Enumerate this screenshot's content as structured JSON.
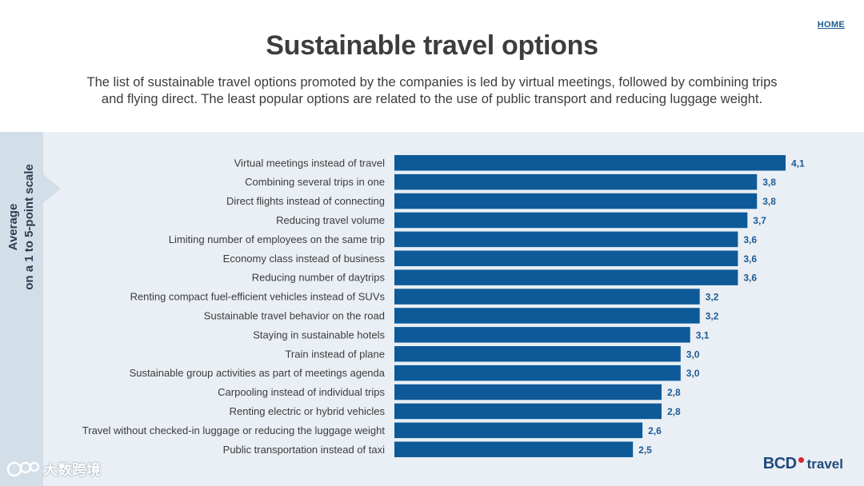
{
  "nav": {
    "home_label": "HOME"
  },
  "header": {
    "title": "Sustainable travel options",
    "subtitle_line1": "The list of sustainable travel options promoted by the companies is led by virtual meetings, followed by combining trips",
    "subtitle_line2": "and flying direct. The least popular options are related to the use of public transport and reducing luggage weight."
  },
  "side_label": {
    "line1": "Average",
    "line2": "on a 1 to 5-point scale"
  },
  "colors": {
    "bar": "#0e5a99",
    "value_text": "#1f5a96",
    "panel": "#e9eff4",
    "side_tab": "#d2dee8"
  },
  "chart_data": {
    "type": "bar",
    "orientation": "horizontal",
    "title": "Sustainable travel options",
    "xlim": [
      0,
      5
    ],
    "categories": [
      "Virtual meetings instead of travel",
      "Combining several trips in one",
      "Direct flights instead of connecting",
      "Reducing travel volume",
      "Limiting number of employees on the same trip",
      "Economy class instead of business",
      "Reducing number of daytrips",
      "Renting compact fuel-efficient vehicles instead of SUVs",
      "Sustainable travel behavior on the road",
      "Staying in sustainable hotels",
      "Train instead of plane",
      "Sustainable group activities as part of meetings agenda",
      "Carpooling instead of individual trips",
      "Renting electric or hybrid vehicles",
      "Travel without checked-in luggage or reducing the luggage weight",
      "Public transportation instead of taxi"
    ],
    "values": [
      4.1,
      3.8,
      3.8,
      3.7,
      3.6,
      3.6,
      3.6,
      3.2,
      3.2,
      3.1,
      3.0,
      3.0,
      2.8,
      2.8,
      2.6,
      2.5
    ],
    "value_labels": [
      "4,1",
      "3,8",
      "3,8",
      "3,7",
      "3,6",
      "3,6",
      "3,6",
      "3,2",
      "3,2",
      "3,1",
      "3,0",
      "3,0",
      "2,8",
      "2,8",
      "2,6",
      "2,5"
    ]
  },
  "logo": {
    "brand": "BCD",
    "suffix": "travel"
  },
  "watermark": {
    "text": "大数跨境"
  }
}
